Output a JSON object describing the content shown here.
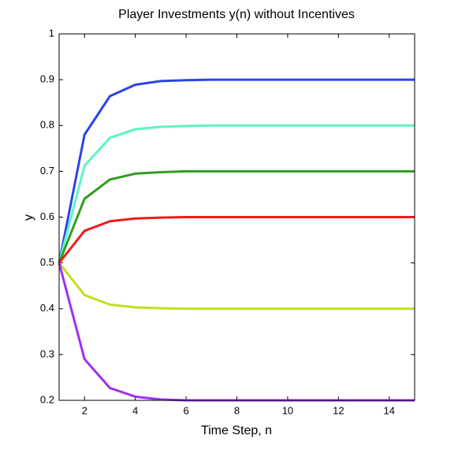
{
  "chart_data": {
    "type": "line",
    "title": "Player Investments y(n) without Incentives",
    "x_label": "Time Step, n",
    "y_label": "y",
    "x": [
      1,
      2,
      3,
      4,
      5,
      6,
      7,
      8,
      9,
      10,
      11,
      12,
      13,
      14,
      15
    ],
    "series": [
      {
        "color": "#2a45e6",
        "values": [
          0.5,
          0.78,
          0.864,
          0.889,
          0.897,
          0.899,
          0.9,
          0.9,
          0.9,
          0.9,
          0.9,
          0.9,
          0.9,
          0.9,
          0.9
        ]
      },
      {
        "color": "#5cf5c4",
        "values": [
          0.5,
          0.712,
          0.773,
          0.792,
          0.797,
          0.799,
          0.8,
          0.8,
          0.8,
          0.8,
          0.8,
          0.8,
          0.8,
          0.8,
          0.8
        ]
      },
      {
        "color": "#2e9e1e",
        "values": [
          0.5,
          0.64,
          0.682,
          0.695,
          0.698,
          0.7,
          0.7,
          0.7,
          0.7,
          0.7,
          0.7,
          0.7,
          0.7,
          0.7,
          0.7
        ]
      },
      {
        "color": "#ee1a1a",
        "values": [
          0.5,
          0.57,
          0.591,
          0.597,
          0.599,
          0.6,
          0.6,
          0.6,
          0.6,
          0.6,
          0.6,
          0.6,
          0.6,
          0.6,
          0.6
        ]
      },
      {
        "color": "#c2e01a",
        "values": [
          0.5,
          0.43,
          0.409,
          0.403,
          0.401,
          0.4,
          0.4,
          0.4,
          0.4,
          0.4,
          0.4,
          0.4,
          0.4,
          0.4,
          0.4
        ]
      },
      {
        "color": "#a030f0",
        "values": [
          0.5,
          0.29,
          0.227,
          0.208,
          0.202,
          0.2,
          0.2,
          0.2,
          0.2,
          0.2,
          0.2,
          0.2,
          0.2,
          0.2,
          0.2
        ]
      }
    ],
    "xlim": [
      1,
      15
    ],
    "xticks": [
      2,
      4,
      6,
      8,
      10,
      12,
      14
    ],
    "ylim": [
      0.2,
      1
    ],
    "yticks": [
      0.2,
      0.3,
      0.4,
      0.5,
      0.6,
      0.7,
      0.8,
      0.9,
      1
    ],
    "grid": false
  }
}
